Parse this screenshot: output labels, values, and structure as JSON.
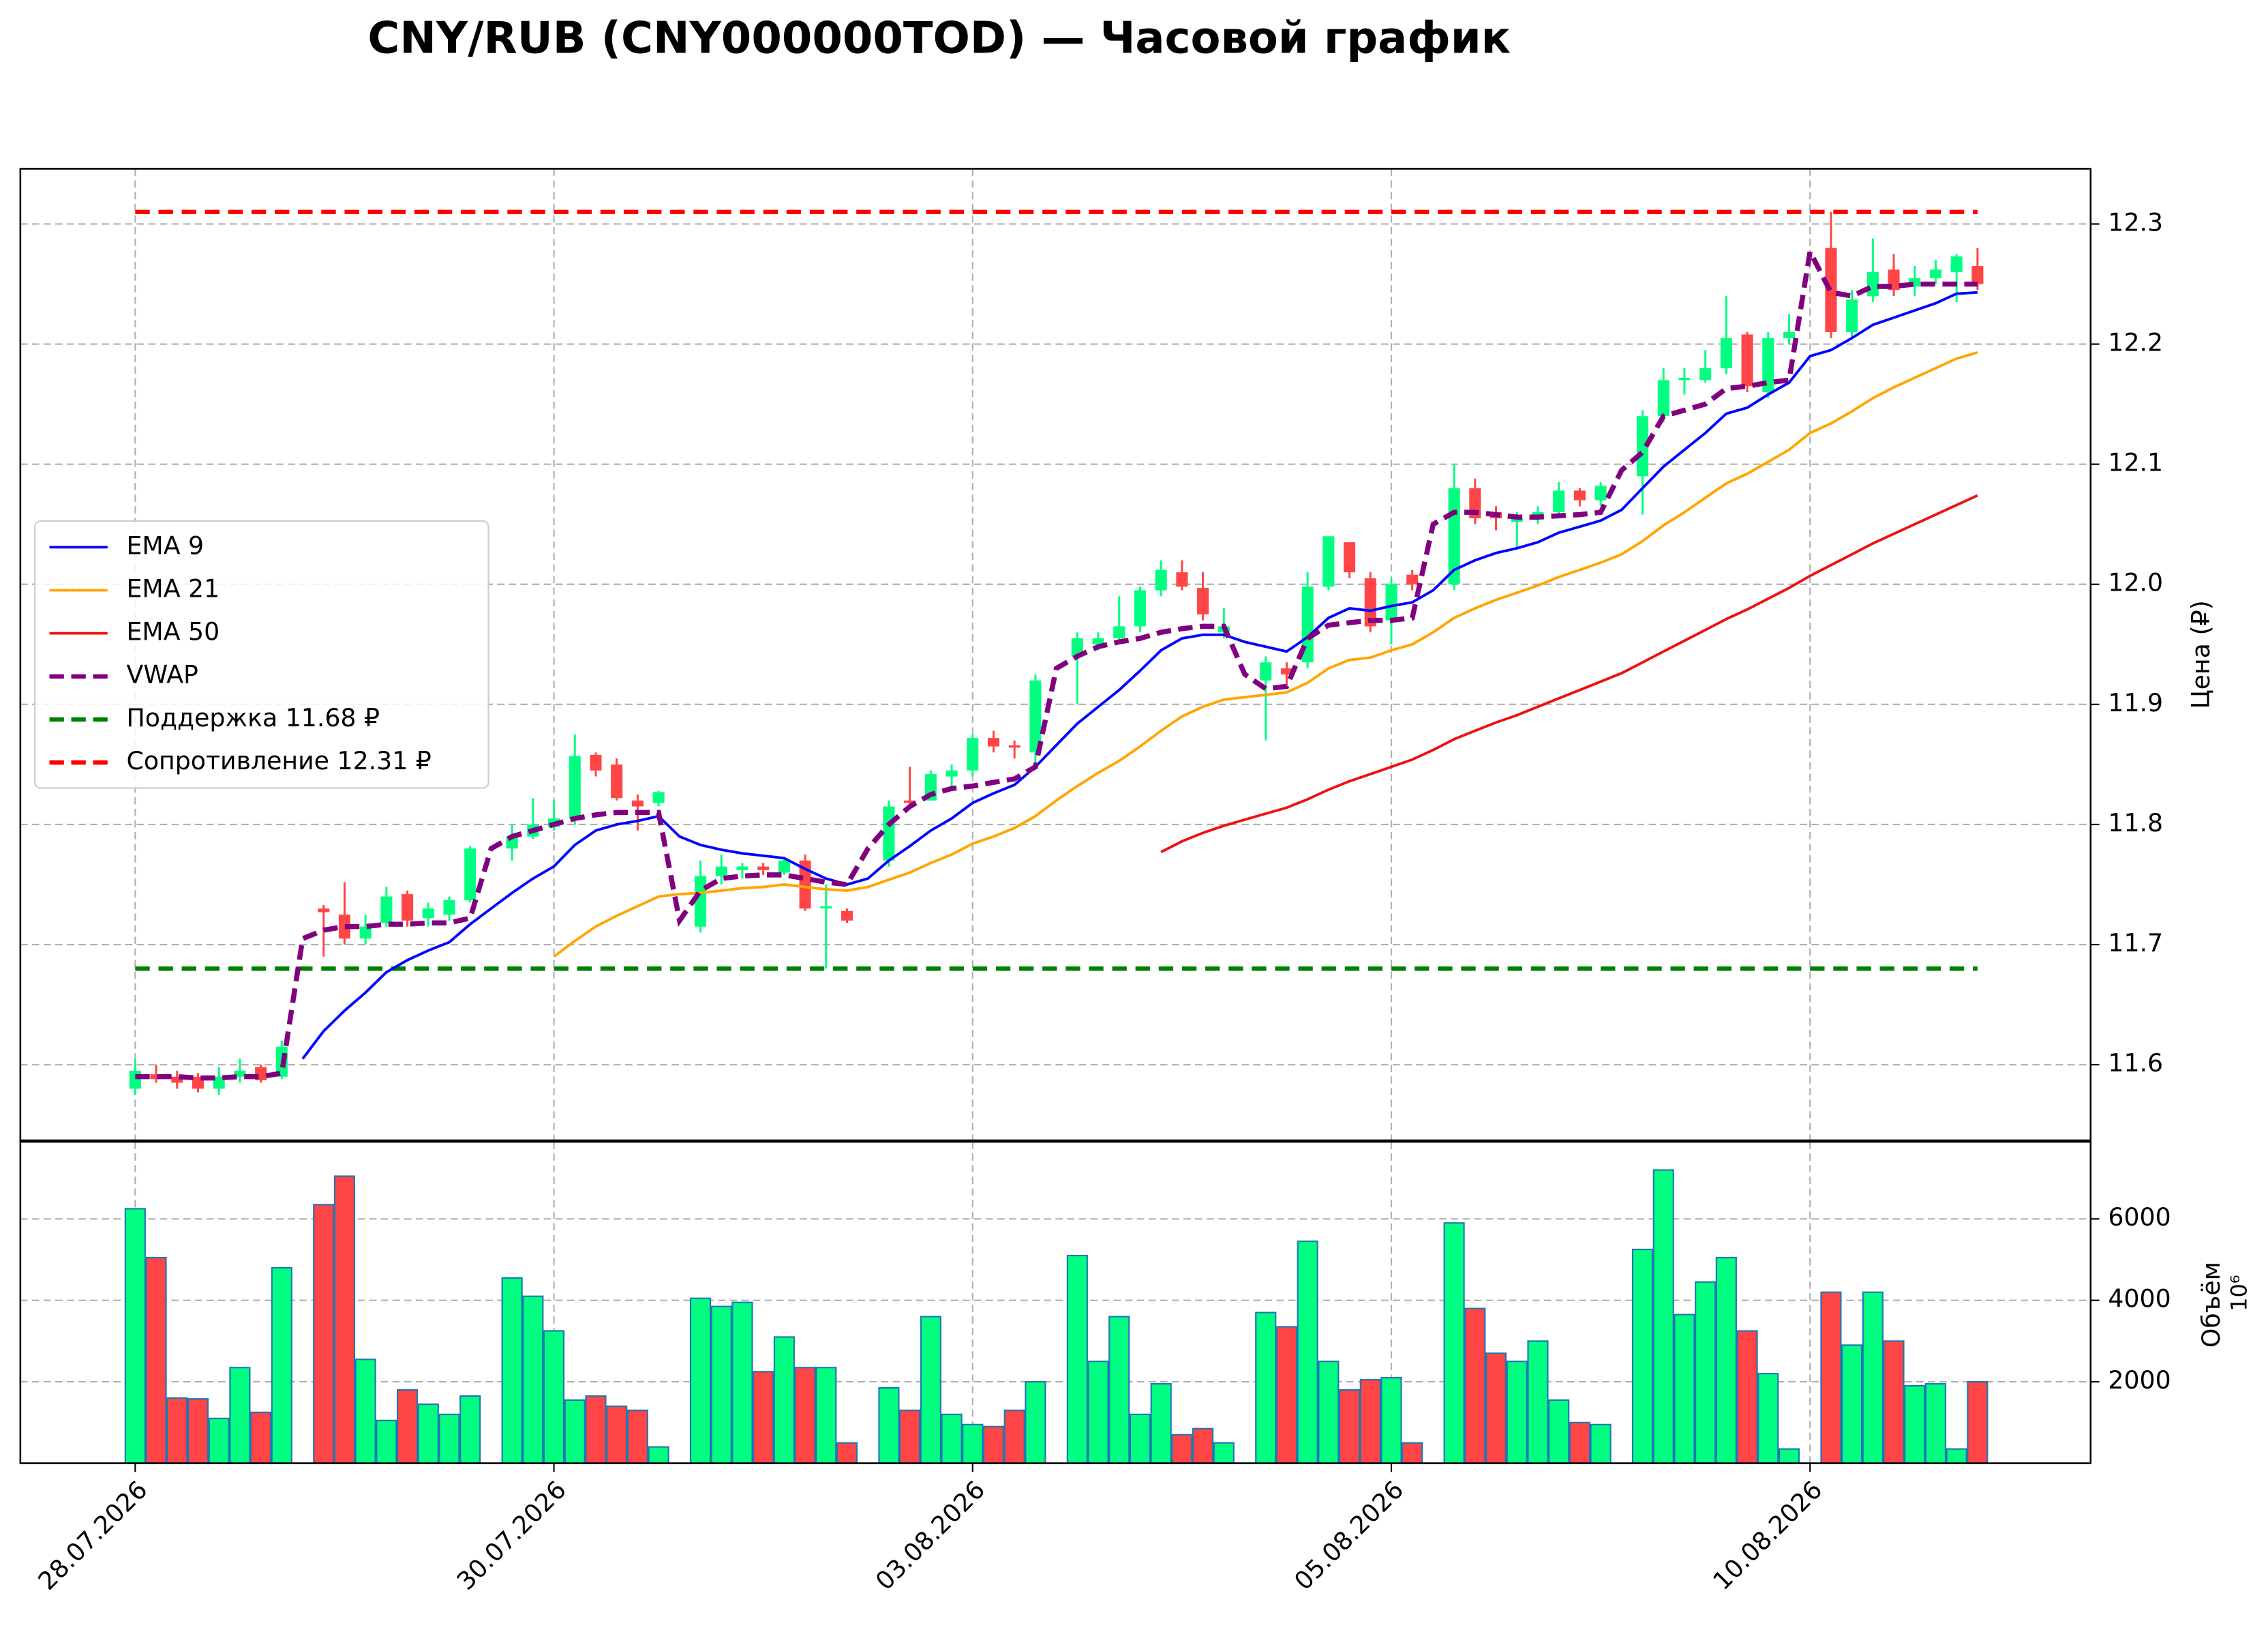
{
  "chart_data": [
    {
      "type": "candlestick",
      "title": "CNY/RUB (CNY000000TOD) — Часовой график",
      "ylabel": "Цена (₽)",
      "ylim": [
        11.537,
        12.346
      ],
      "yticks": [
        11.6,
        11.7,
        11.8,
        11.9,
        {
          "value": 12,
          "label": "12.0"
        },
        12.1,
        12.2,
        12.3
      ],
      "grid": true,
      "legend": "center left",
      "up_color": "#00ff80",
      "down_color": "#ff4545",
      "open": [
        11.58,
        11.592,
        11.59,
        11.59,
        11.58,
        11.59,
        11.598,
        11.59,
        null,
        11.73,
        11.725,
        11.705,
        11.718,
        11.742,
        11.722,
        11.725,
        11.737,
        null,
        11.78,
        11.79,
        11.798,
        11.805,
        11.858,
        11.85,
        11.82,
        11.818,
        null,
        11.715,
        11.757,
        11.762,
        11.765,
        11.76,
        11.77,
        11.73,
        11.728,
        null,
        11.77,
        11.82,
        11.82,
        11.84,
        11.845,
        11.872,
        11.866,
        11.86,
        null,
        11.94,
        11.95,
        11.955,
        11.965,
        11.995,
        12.01,
        11.997,
        11.96,
        null,
        11.92,
        11.93,
        11.935,
        11.998,
        12.035,
        12.005,
        11.97,
        12.008,
        null,
        12.0,
        12.08,
        12.06,
        12.052,
        12.055,
        12.06,
        12.078,
        12.07,
        null,
        12.09,
        12.14,
        12.17,
        12.17,
        12.18,
        12.208,
        12.16,
        12.205,
        null,
        12.28,
        12.21,
        12.24,
        12.262,
        12.248,
        12.255,
        12.26,
        12.265
      ],
      "high": [
        11.605,
        11.6,
        11.595,
        11.593,
        11.598,
        11.605,
        11.6,
        11.62,
        null,
        11.733,
        11.752,
        11.725,
        11.748,
        11.745,
        11.735,
        11.74,
        11.782,
        null,
        11.8,
        11.822,
        11.82,
        11.875,
        11.86,
        11.855,
        11.825,
        11.828,
        null,
        11.77,
        11.775,
        11.768,
        11.768,
        11.772,
        11.775,
        11.75,
        11.73,
        null,
        11.82,
        11.848,
        11.845,
        11.85,
        11.875,
        11.878,
        11.87,
        11.925,
        null,
        11.96,
        11.96,
        11.99,
        11.998,
        12.02,
        12.02,
        12.01,
        11.98,
        null,
        11.94,
        11.935,
        12.01,
        12.04,
        12.035,
        12.01,
        12.005,
        12.012,
        null,
        12.1,
        12.088,
        12.065,
        12.06,
        12.065,
        12.085,
        12.08,
        12.085,
        null,
        12.145,
        12.18,
        12.18,
        12.195,
        12.24,
        12.21,
        12.21,
        12.225,
        null,
        12.31,
        12.245,
        12.288,
        12.275,
        12.265,
        12.27,
        12.275,
        12.28
      ],
      "low": [
        11.575,
        11.585,
        11.58,
        11.577,
        11.575,
        11.585,
        11.585,
        11.588,
        null,
        11.69,
        11.7,
        11.7,
        11.715,
        11.715,
        11.715,
        11.72,
        11.735,
        null,
        11.77,
        11.788,
        11.795,
        11.8,
        11.84,
        11.82,
        11.795,
        11.815,
        null,
        11.71,
        11.75,
        11.755,
        11.758,
        11.758,
        11.728,
        11.68,
        11.718,
        null,
        11.765,
        11.815,
        11.82,
        11.83,
        11.84,
        11.86,
        11.855,
        11.85,
        null,
        11.9,
        11.945,
        11.95,
        11.96,
        11.99,
        11.995,
        11.97,
        11.955,
        null,
        11.87,
        11.915,
        11.93,
        11.995,
        12.005,
        11.96,
        11.95,
        11.995,
        null,
        11.995,
        12.05,
        12.045,
        12.03,
        12.05,
        12.055,
        12.065,
        12.065,
        null,
        12.058,
        12.135,
        12.158,
        12.168,
        12.175,
        12.16,
        12.155,
        12.2,
        null,
        12.205,
        12.205,
        12.235,
        12.24,
        12.24,
        12.25,
        12.235,
        12.245
      ],
      "close": [
        11.595,
        11.588,
        11.585,
        11.58,
        11.59,
        11.595,
        11.587,
        11.615,
        null,
        11.727,
        11.705,
        11.715,
        11.74,
        11.72,
        11.73,
        11.737,
        11.78,
        null,
        11.79,
        11.8,
        11.805,
        11.857,
        11.845,
        11.822,
        11.815,
        11.827,
        null,
        11.757,
        11.765,
        11.765,
        11.762,
        11.77,
        11.73,
        11.732,
        11.72,
        null,
        11.815,
        11.818,
        11.842,
        11.845,
        11.872,
        11.865,
        11.864,
        11.92,
        null,
        11.955,
        11.955,
        11.965,
        11.995,
        12.012,
        11.998,
        11.975,
        11.965,
        null,
        11.935,
        11.925,
        11.998,
        12.04,
        12.01,
        11.965,
        12.0,
        12.0,
        null,
        12.08,
        12.055,
        12.055,
        12.055,
        12.06,
        12.078,
        12.07,
        12.082,
        null,
        12.14,
        12.17,
        12.172,
        12.18,
        12.205,
        12.165,
        12.205,
        12.21,
        null,
        12.21,
        12.237,
        12.26,
        12.245,
        12.255,
        12.262,
        12.273,
        12.25
      ],
      "series": [
        {
          "name": "EMA 9",
          "color": "#0000ff",
          "dashed": false,
          "values": [
            null,
            null,
            null,
            null,
            null,
            null,
            null,
            null,
            11.605,
            11.628,
            11.645,
            11.66,
            11.677,
            11.687,
            11.695,
            11.702,
            11.717,
            11.73,
            11.743,
            11.755,
            11.765,
            11.783,
            11.795,
            11.8,
            11.803,
            11.807,
            11.79,
            11.783,
            11.779,
            11.776,
            11.774,
            11.772,
            11.763,
            11.755,
            11.75,
            11.755,
            11.77,
            11.782,
            11.795,
            11.805,
            11.818,
            11.826,
            11.833,
            11.848,
            11.866,
            11.884,
            11.898,
            11.912,
            11.928,
            11.945,
            11.955,
            11.958,
            11.958,
            11.952,
            11.948,
            11.944,
            11.956,
            11.972,
            11.98,
            11.978,
            11.982,
            11.985,
            11.995,
            12.012,
            12.02,
            12.026,
            12.03,
            12.035,
            12.043,
            12.048,
            12.053,
            12.062,
            12.08,
            12.098,
            12.112,
            12.126,
            12.142,
            12.147,
            12.158,
            12.168,
            12.19,
            12.195,
            12.205,
            12.216,
            12.222,
            12.228,
            12.234,
            12.242,
            12.243
          ]
        },
        {
          "name": "EMA 21",
          "color": "#ffa500",
          "dashed": false,
          "values": [
            null,
            null,
            null,
            null,
            null,
            null,
            null,
            null,
            null,
            null,
            null,
            null,
            null,
            null,
            null,
            null,
            null,
            null,
            null,
            null,
            11.69,
            11.703,
            11.715,
            11.724,
            11.732,
            11.74,
            11.742,
            11.743,
            11.745,
            11.747,
            11.748,
            11.75,
            11.748,
            11.746,
            11.745,
            11.748,
            11.754,
            11.76,
            11.768,
            11.775,
            11.784,
            11.79,
            11.797,
            11.807,
            11.82,
            11.832,
            11.843,
            11.853,
            11.865,
            11.878,
            11.89,
            11.898,
            11.904,
            11.906,
            11.908,
            11.91,
            11.918,
            11.93,
            11.937,
            11.939,
            11.945,
            11.95,
            11.96,
            11.972,
            11.98,
            11.987,
            11.993,
            11.999,
            12.006,
            12.012,
            12.018,
            12.025,
            12.036,
            12.049,
            12.06,
            12.072,
            12.084,
            12.092,
            12.102,
            12.112,
            12.126,
            12.134,
            12.144,
            12.155,
            12.164,
            12.172,
            12.18,
            12.188,
            12.193
          ]
        },
        {
          "name": "EMA 50",
          "color": "#ee1111",
          "dashed": false,
          "values": [
            null,
            null,
            null,
            null,
            null,
            null,
            null,
            null,
            null,
            null,
            null,
            null,
            null,
            null,
            null,
            null,
            null,
            null,
            null,
            null,
            null,
            null,
            null,
            null,
            null,
            null,
            null,
            null,
            null,
            null,
            null,
            null,
            null,
            null,
            null,
            null,
            null,
            null,
            null,
            null,
            null,
            null,
            null,
            null,
            null,
            null,
            null,
            null,
            null,
            11.777,
            11.786,
            11.793,
            11.799,
            11.804,
            11.809,
            11.814,
            11.821,
            11.829,
            11.836,
            11.842,
            11.848,
            11.854,
            11.862,
            11.871,
            11.878,
            11.885,
            11.891,
            11.898,
            11.905,
            11.912,
            11.919,
            11.926,
            11.935,
            11.944,
            11.953,
            11.962,
            11.971,
            11.979,
            11.988,
            11.997,
            12.007,
            12.016,
            12.025,
            12.034,
            12.042,
            12.05,
            12.058,
            12.066,
            12.074
          ]
        },
        {
          "name": "VWAP",
          "color": "#800080",
          "dashed": true,
          "values": [
            11.59,
            11.59,
            11.59,
            11.589,
            11.589,
            11.59,
            11.59,
            11.593,
            11.705,
            11.712,
            11.715,
            11.715,
            11.717,
            11.717,
            11.718,
            11.718,
            11.722,
            11.78,
            11.79,
            11.795,
            11.8,
            11.805,
            11.808,
            11.81,
            11.81,
            11.81,
            11.72,
            11.745,
            11.755,
            11.757,
            11.758,
            11.758,
            11.755,
            11.752,
            11.75,
            11.78,
            11.8,
            11.815,
            11.825,
            11.83,
            11.832,
            11.835,
            11.838,
            11.848,
            11.93,
            11.94,
            11.948,
            11.952,
            11.955,
            11.96,
            11.963,
            11.965,
            11.965,
            11.925,
            11.913,
            11.915,
            11.955,
            11.966,
            11.968,
            11.97,
            11.97,
            11.972,
            12.05,
            12.06,
            12.06,
            12.058,
            12.056,
            12.056,
            12.057,
            12.058,
            12.06,
            12.095,
            12.11,
            12.14,
            12.145,
            12.15,
            12.163,
            12.165,
            12.168,
            12.17,
            12.277,
            12.243,
            12.24,
            12.248,
            12.248,
            12.25,
            12.25,
            12.25,
            12.25
          ]
        }
      ],
      "levels": [
        {
          "name": "Поддержка 11.68 ₽",
          "value": 11.68,
          "color": "#008000"
        },
        {
          "name": "Сопротивление 12.31 ₽",
          "value": 12.31,
          "color": "#ff0000"
        }
      ]
    },
    {
      "type": "bar",
      "ylabel": "Объём",
      "offset_label": "10⁶",
      "edge_color": "#1f77b4",
      "ylim": [
        0,
        7893
      ],
      "yticks": [
        2000,
        4000,
        6000
      ],
      "grid": true,
      "categories": [
        "28.07.2026",
        null,
        null,
        null,
        null,
        null,
        null,
        null,
        null,
        null,
        null,
        null,
        null,
        null,
        null,
        null,
        null,
        null,
        null,
        null,
        "30.07.2026",
        null,
        null,
        null,
        null,
        null,
        null,
        null,
        null,
        null,
        null,
        null,
        null,
        null,
        null,
        null,
        null,
        null,
        null,
        null,
        "03.08.2026",
        null,
        null,
        null,
        null,
        null,
        null,
        null,
        null,
        null,
        null,
        null,
        null,
        null,
        null,
        null,
        null,
        null,
        null,
        null,
        "05.08.2026",
        null,
        null,
        null,
        null,
        null,
        null,
        null,
        null,
        null,
        null,
        null,
        null,
        null,
        null,
        null,
        null,
        null,
        null,
        null,
        "10.08.2026",
        null,
        null,
        null,
        null,
        null,
        null,
        null,
        null
      ],
      "values": [
        6250,
        5050,
        1600,
        1580,
        1100,
        2350,
        1250,
        4800,
        null,
        6350,
        7050,
        2550,
        1050,
        1800,
        1450,
        1200,
        1650,
        null,
        4550,
        4100,
        3250,
        1550,
        1650,
        1400,
        1300,
        400,
        null,
        4050,
        3850,
        3950,
        2250,
        3100,
        2350,
        2350,
        500,
        null,
        1850,
        1300,
        3600,
        1200,
        950,
        900,
        1300,
        2000,
        null,
        5100,
        2500,
        3600,
        1200,
        1950,
        700,
        850,
        500,
        null,
        3700,
        3350,
        5450,
        2500,
        1800,
        2050,
        2100,
        500,
        null,
        5900,
        3800,
        2700,
        2500,
        3000,
        1550,
        1000,
        950,
        null,
        5250,
        7200,
        3650,
        4450,
        5050,
        3250,
        2200,
        350,
        null,
        4200,
        2900,
        4200,
        3000,
        1900,
        1950,
        350,
        2000
      ]
    }
  ]
}
